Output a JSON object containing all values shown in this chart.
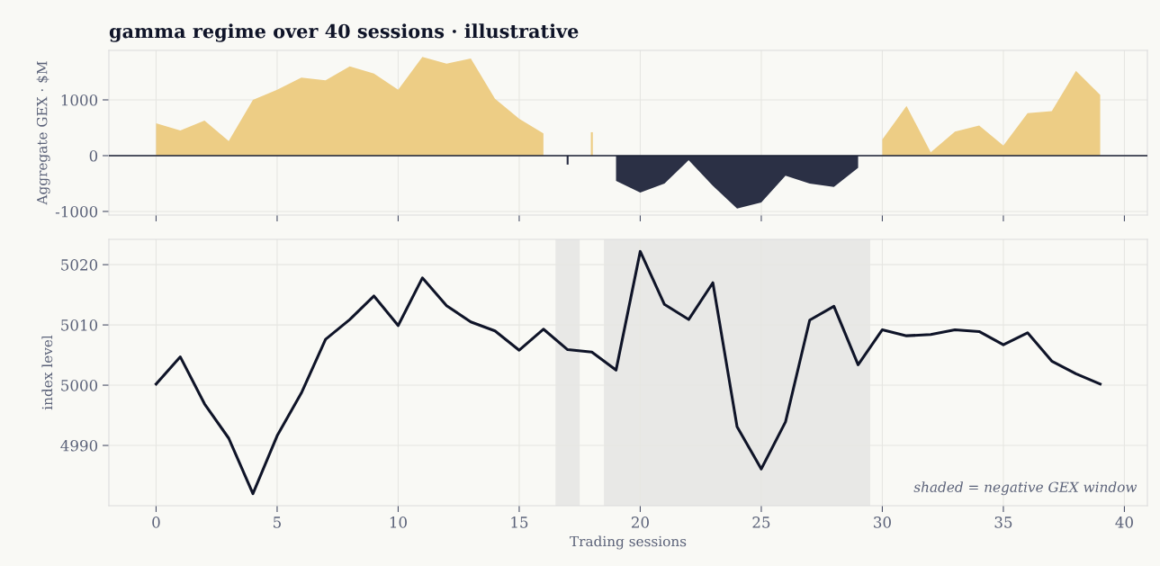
{
  "chart_data": [
    {
      "type": "area",
      "title": "gamma regime over 40 sessions · illustrative",
      "ylabel": "Aggregate GEX · $M",
      "x": [
        0,
        1,
        2,
        3,
        4,
        5,
        6,
        7,
        8,
        9,
        10,
        11,
        12,
        13,
        14,
        15,
        16,
        17,
        18,
        19,
        20,
        21,
        22,
        23,
        24,
        25,
        26,
        27,
        28,
        29,
        30,
        31,
        32,
        33,
        34,
        35,
        36,
        37,
        38,
        39
      ],
      "series": [
        {
          "color": "#edcd85",
          "values": [
            580,
            450,
            630,
            260,
            1000,
            1180,
            1400,
            1350,
            1600,
            1470,
            1180,
            1770,
            1650,
            1740,
            1020,
            660,
            400,
            null,
            420,
            null,
            null,
            null,
            null,
            null,
            null,
            null,
            null,
            null,
            null,
            null,
            290,
            890,
            60,
            430,
            540,
            180,
            760,
            800,
            1520,
            1090
          ]
        },
        {
          "color": "#2b3045",
          "values": [
            null,
            null,
            null,
            null,
            null,
            null,
            null,
            null,
            null,
            null,
            null,
            null,
            null,
            null,
            null,
            null,
            null,
            -160,
            null,
            -450,
            -660,
            -500,
            -80,
            -540,
            -950,
            -840,
            -360,
            -500,
            -560,
            -220,
            null,
            null,
            null,
            null,
            null,
            null,
            null,
            null,
            null,
            null
          ]
        }
      ],
      "xlim": [
        -1.95,
        40.95
      ],
      "xticks": [
        0,
        5,
        10,
        15,
        20,
        25,
        30,
        35,
        40
      ],
      "ylim": [
        -1065,
        1887
      ],
      "yticks": [
        -1000,
        0,
        1000
      ],
      "tick_labels": "y",
      "grid": true,
      "ref_lines": [
        {
          "axis": "y",
          "value": 0,
          "color": "#1a1f33"
        }
      ]
    },
    {
      "type": "line",
      "xlabel": "Trading sessions",
      "ylabel": "index level",
      "x": [
        0,
        1,
        2,
        3,
        4,
        5,
        6,
        7,
        8,
        9,
        10,
        11,
        12,
        13,
        14,
        15,
        16,
        17,
        18,
        19,
        20,
        21,
        22,
        23,
        24,
        25,
        26,
        27,
        28,
        29,
        30,
        31,
        32,
        33,
        34,
        35,
        36,
        37,
        38,
        39
      ],
      "series": [
        {
          "color": "#0f1428",
          "values": [
            5000.2,
            5004.7,
            4996.9,
            4991.2,
            4982.0,
            4991.6,
            4998.7,
            5007.6,
            5010.9,
            5014.8,
            5009.9,
            5017.8,
            5013.2,
            5010.5,
            5009.0,
            5005.8,
            5009.3,
            5005.9,
            5005.5,
            5002.5,
            5022.2,
            5013.4,
            5010.9,
            5017.0,
            4993.1,
            4986.1,
            4993.9,
            5010.8,
            5013.1,
            5003.4,
            5009.2,
            5008.2,
            5008.4,
            5009.2,
            5008.9,
            5006.7,
            5008.7,
            5004.0,
            5001.9,
            5000.2
          ]
        }
      ],
      "xlim": [
        -1.95,
        40.95
      ],
      "xticks": [
        0,
        5,
        10,
        15,
        20,
        25,
        30,
        35,
        40
      ],
      "ylim": [
        4980,
        5024.2
      ],
      "yticks": [
        4990,
        5000,
        5010,
        5020
      ],
      "grid": true,
      "line_style": "solid",
      "marker": "none",
      "bands": [
        {
          "axis": "x",
          "from": 16.5,
          "to": 17.5,
          "color": "#e8e8e6"
        },
        {
          "axis": "x",
          "from": 18.5,
          "to": 29.5,
          "color": "#e8e8e6"
        }
      ],
      "annotations": [
        "shaded = negative GEX window"
      ]
    }
  ]
}
